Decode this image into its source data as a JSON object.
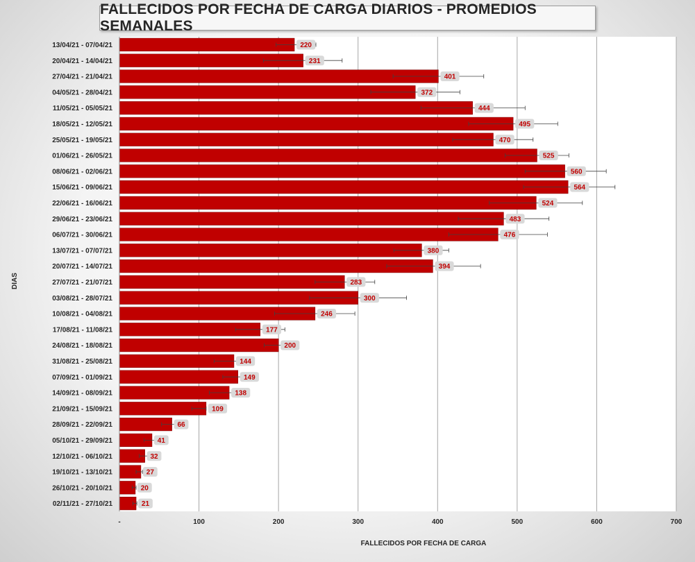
{
  "chart_data": {
    "type": "bar",
    "orientation": "horizontal",
    "title": "FALLECIDOS POR FECHA DE CARGA DIARIOS - PROMEDIOS SEMANALES",
    "xlabel": "FALLECIDOS POR FECHA DE CARGA",
    "ylabel": "DIAS",
    "xlim": [
      0,
      700
    ],
    "xticks": [
      "-",
      "100",
      "200",
      "300",
      "400",
      "500",
      "600",
      "700"
    ],
    "grid": "vertical",
    "bar_color": "#c00000",
    "label_color": "#c00000",
    "label_bg": "#d9d9d9",
    "categories": [
      "13/04/21 - 07/04/21",
      "20/04/21 - 14/04/21",
      "27/04/21 - 21/04/21",
      "04/05/21 - 28/04/21",
      "11/05/21 - 05/05/21",
      "18/05/21 - 12/05/21",
      "25/05/21 - 19/05/21",
      "01/06/21 - 26/05/21",
      "08/06/21 - 02/06/21",
      "15/06/21 - 09/06/21",
      "22/06/21 - 16/06/21",
      "29/06/21 - 23/06/21",
      "06/07/21 - 30/06/21",
      "13/07/21 - 07/07/21",
      "20/07/21 - 14/07/21",
      "27/07/21 - 21/07/21",
      "03/08/21 - 28/07/21",
      "10/08/21 - 04/08/21",
      "17/08/21 - 11/08/21",
      "24/08/21 - 18/08/21",
      "31/08/21 - 25/08/21",
      "07/09/21 - 01/09/21",
      "14/09/21 - 08/09/21",
      "21/09/21 - 15/09/21",
      "28/09/21 - 22/09/21",
      "05/10/21 - 29/09/21",
      "12/10/21 - 06/10/21",
      "19/10/21 - 13/10/21",
      "26/10/21 - 20/10/21",
      "02/11/21 - 27/10/21"
    ],
    "values": [
      220,
      231,
      401,
      372,
      444,
      495,
      470,
      525,
      560,
      564,
      524,
      483,
      476,
      380,
      394,
      283,
      300,
      246,
      177,
      200,
      144,
      149,
      138,
      109,
      66,
      41,
      32,
      27,
      20,
      21
    ],
    "error_low": [
      197,
      181,
      344,
      316,
      379,
      439,
      419,
      485,
      510,
      508,
      465,
      426,
      414,
      345,
      336,
      246,
      239,
      195,
      146,
      182,
      119,
      130,
      113,
      91,
      53,
      31,
      25,
      21,
      16,
      17
    ],
    "error_high": [
      247,
      280,
      458,
      428,
      510,
      551,
      520,
      565,
      612,
      623,
      582,
      540,
      538,
      414,
      454,
      321,
      361,
      296,
      208,
      214,
      168,
      166,
      163,
      109,
      70,
      46,
      36,
      29,
      21,
      22
    ]
  }
}
